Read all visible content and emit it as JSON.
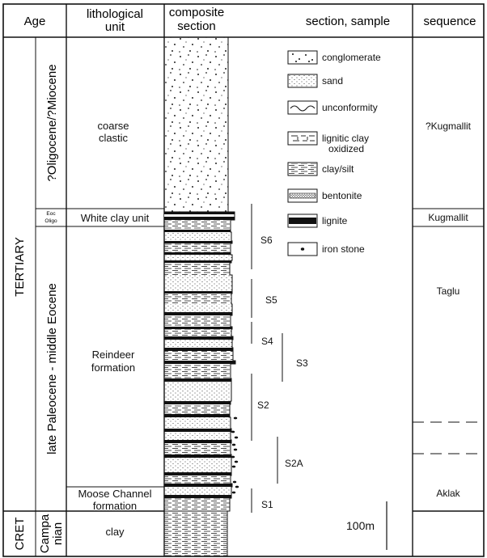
{
  "headers": {
    "age": "Age",
    "lith_unit_line1": "lithological",
    "lith_unit_line2": "unit",
    "composite_line1": "composite",
    "composite_line2": "section",
    "section_sample": "section, sample",
    "sequence": "sequence"
  },
  "age": {
    "tertiary": "TERTIARY",
    "cret": "CRET",
    "oligocene_miocene": "?Oligocene/?Miocene",
    "eoc": "Eoc",
    "oligo": "Oligo",
    "paleocene_eocene": "late Paleocene - middle Eocene",
    "campanian_line1": "Campa",
    "campanian_line2": "nian"
  },
  "units": {
    "coarse_line1": "coarse",
    "coarse_line2": "clastic",
    "white_clay": "White clay unit",
    "reindeer_line1": "Reindeer",
    "reindeer_line2": "formation",
    "moose_line1": "Moose Channel",
    "moose_line2": "formation",
    "clay": "clay"
  },
  "legend": [
    {
      "label": "conglomerate",
      "pattern": "conglomerate"
    },
    {
      "label": "sand",
      "pattern": "sand"
    },
    {
      "label": "unconformity",
      "pattern": "unconformity"
    },
    {
      "label": "lignitic clay",
      "label2": "oxidized",
      "pattern": "lignitic"
    },
    {
      "label": "clay/silt",
      "pattern": "claysilt"
    },
    {
      "label": "bentonite",
      "pattern": "bentonite"
    },
    {
      "label": "lignite",
      "pattern": "lignite"
    },
    {
      "label": "iron stone",
      "pattern": "ironstone"
    }
  ],
  "samples": {
    "s6": "S6",
    "s5": "S5",
    "s4": "S4",
    "s3": "S3",
    "s2": "S2",
    "s2a": "S2A",
    "s1": "S1"
  },
  "scale_label": "100m",
  "sequences": {
    "kugmallit_q": "?Kugmallit",
    "kugmallit": "Kugmallit",
    "taglu": "Taglu",
    "aklak": "Aklak"
  }
}
